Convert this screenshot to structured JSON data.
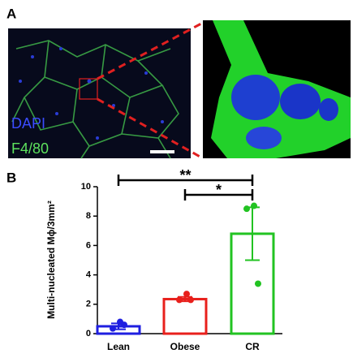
{
  "figure": {
    "panel_a": "A",
    "dapi": "DAPI",
    "f480": "F4/80",
    "panel_b": "B"
  },
  "chart_data": {
    "type": "bar",
    "y_label": "Multi-nucleated Mϕ/3mm²",
    "categories": [
      "Lean",
      "Obese",
      "CR"
    ],
    "values": [
      0.5,
      2.35,
      6.8
    ],
    "errors": [
      0.2,
      0.15,
      1.8
    ],
    "points": [
      [
        0.8,
        0.35,
        0.6
      ],
      [
        2.7,
        2.3,
        2.3
      ],
      [
        8.7,
        8.5,
        3.4
      ]
    ],
    "colors": [
      "#1f1fe0",
      "#e8201c",
      "#22c322"
    ],
    "ylim": [
      0,
      10
    ],
    "yticks": [
      0,
      2,
      4,
      6,
      8,
      10
    ],
    "annotations": [
      "**",
      "*"
    ]
  }
}
